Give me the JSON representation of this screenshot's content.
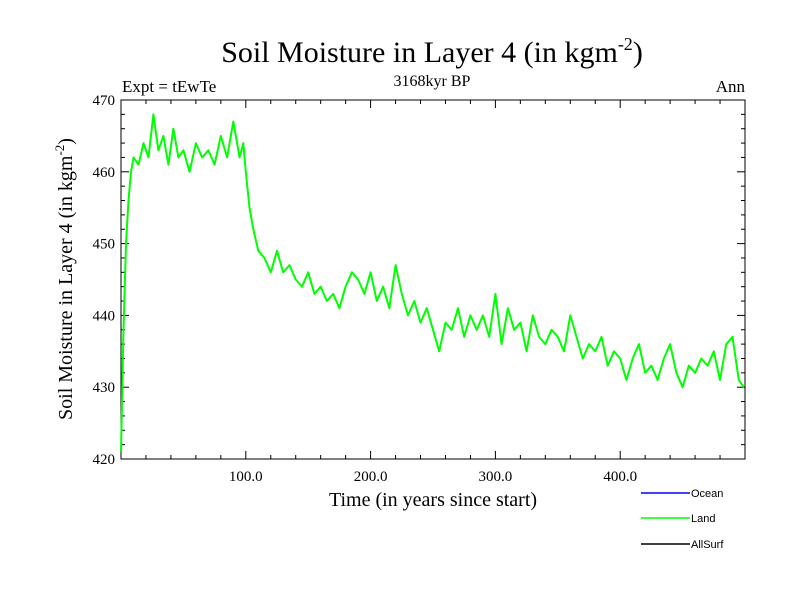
{
  "chart_data": {
    "type": "line",
    "title": "Soil Moisture in Layer 4 (in kgm",
    "title_superscript": "-2",
    "title_close": ")",
    "subtitle": "3168kyr BP",
    "left_label": "Expt = tEwTe",
    "right_label": "Ann",
    "xlabel": "Time (in years since start)",
    "ylabel": "Soil Moisture in Layer 4 (in kgm",
    "ylabel_superscript": "-2",
    "ylabel_close": ")",
    "xlim": [
      0,
      500
    ],
    "ylim": [
      420,
      470
    ],
    "x_ticks": [
      100,
      200,
      300,
      400
    ],
    "x_tick_labels": [
      "100.0",
      "200.0",
      "300.0",
      "400.0"
    ],
    "y_ticks": [
      420,
      430,
      440,
      450,
      460,
      470
    ],
    "y_tick_labels": [
      "420",
      "430",
      "440",
      "450",
      "460",
      "470"
    ],
    "legend": [
      {
        "name": "Ocean",
        "color": "#0000ff"
      },
      {
        "name": "Land",
        "color": "#00ff00"
      },
      {
        "name": "AllSurf",
        "color": "#000000"
      }
    ],
    "series": [
      {
        "name": "Land",
        "color": "#00ff00",
        "x": [
          0,
          2,
          4,
          6,
          8,
          10,
          14,
          18,
          22,
          26,
          30,
          34,
          38,
          42,
          46,
          50,
          55,
          60,
          65,
          70,
          75,
          80,
          85,
          90,
          95,
          98,
          100,
          103,
          106,
          110,
          115,
          120,
          125,
          130,
          135,
          140,
          145,
          150,
          155,
          160,
          165,
          170,
          175,
          180,
          185,
          190,
          195,
          200,
          205,
          210,
          215,
          220,
          225,
          230,
          235,
          240,
          245,
          250,
          255,
          260,
          265,
          270,
          275,
          280,
          285,
          290,
          295,
          300,
          305,
          310,
          315,
          320,
          325,
          330,
          335,
          340,
          345,
          350,
          355,
          360,
          365,
          370,
          375,
          380,
          385,
          390,
          395,
          400,
          405,
          410,
          415,
          420,
          425,
          430,
          435,
          440,
          445,
          450,
          455,
          460,
          465,
          470,
          475,
          480,
          485,
          490,
          495,
          499
        ],
        "y": [
          421,
          438,
          450,
          456,
          460,
          462,
          461,
          464,
          462,
          468,
          463,
          465,
          461,
          466,
          462,
          463,
          460,
          464,
          462,
          463,
          461,
          465,
          462,
          467,
          462,
          464,
          460,
          455,
          452,
          449,
          448,
          446,
          449,
          446,
          447,
          445,
          444,
          446,
          443,
          444,
          442,
          443,
          441,
          444,
          446,
          445,
          443,
          446,
          442,
          444,
          441,
          447,
          443,
          440,
          442,
          439,
          441,
          438,
          435,
          439,
          438,
          441,
          437,
          440,
          438,
          440,
          437,
          443,
          436,
          441,
          438,
          439,
          435,
          440,
          437,
          436,
          438,
          437,
          435,
          440,
          437,
          434,
          436,
          435,
          437,
          433,
          435,
          434,
          431,
          434,
          436,
          432,
          433,
          431,
          434,
          436,
          432,
          430,
          433,
          432,
          434,
          433,
          435,
          431,
          436,
          437,
          431,
          430
        ]
      },
      {
        "name": "Ocean",
        "color": "#0000ff",
        "x": [],
        "y": []
      },
      {
        "name": "AllSurf",
        "color": "#000000",
        "x": [],
        "y": []
      }
    ]
  }
}
